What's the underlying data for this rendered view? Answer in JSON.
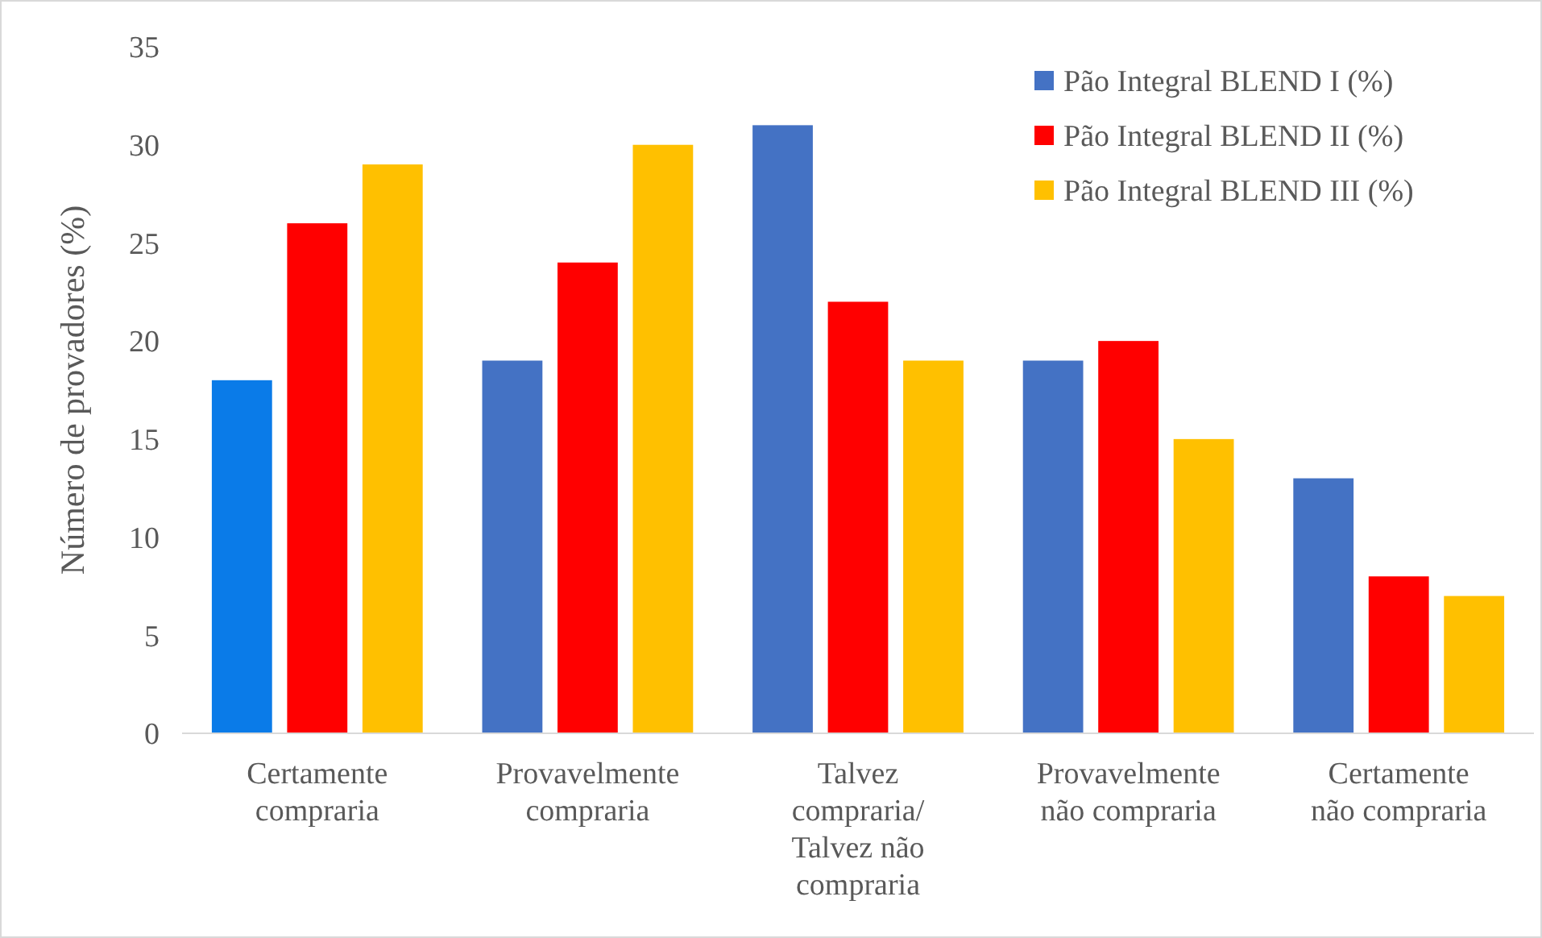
{
  "chart_data": {
    "type": "bar",
    "ylabel": "Número de provadores (%)",
    "categories": [
      "Certamente compraria",
      "Provavelmente compraria",
      "Talvez compraria/ Talvez não compraria",
      "Provavelmente não compraria",
      "Certamente não compraria"
    ],
    "series": [
      {
        "name": "Pão Integral BLEND I (%)",
        "color": "#4472c4",
        "colors": [
          "#0a7be8",
          "#4472c4",
          "#4472c4",
          "#4472c4",
          "#4472c4"
        ],
        "values": [
          18,
          19,
          31,
          19,
          13
        ]
      },
      {
        "name": "Pão Integral BLEND II (%)",
        "color": "#ff0000",
        "values": [
          26,
          24,
          22,
          20,
          8
        ]
      },
      {
        "name": "Pão Integral BLEND III (%)",
        "color": "#ffc000",
        "values": [
          29,
          30,
          19,
          15,
          7
        ]
      }
    ],
    "ylim": [
      0,
      35
    ],
    "yticks": [
      0,
      5,
      10,
      15,
      20,
      25,
      30,
      35
    ],
    "legend": "top right"
  }
}
